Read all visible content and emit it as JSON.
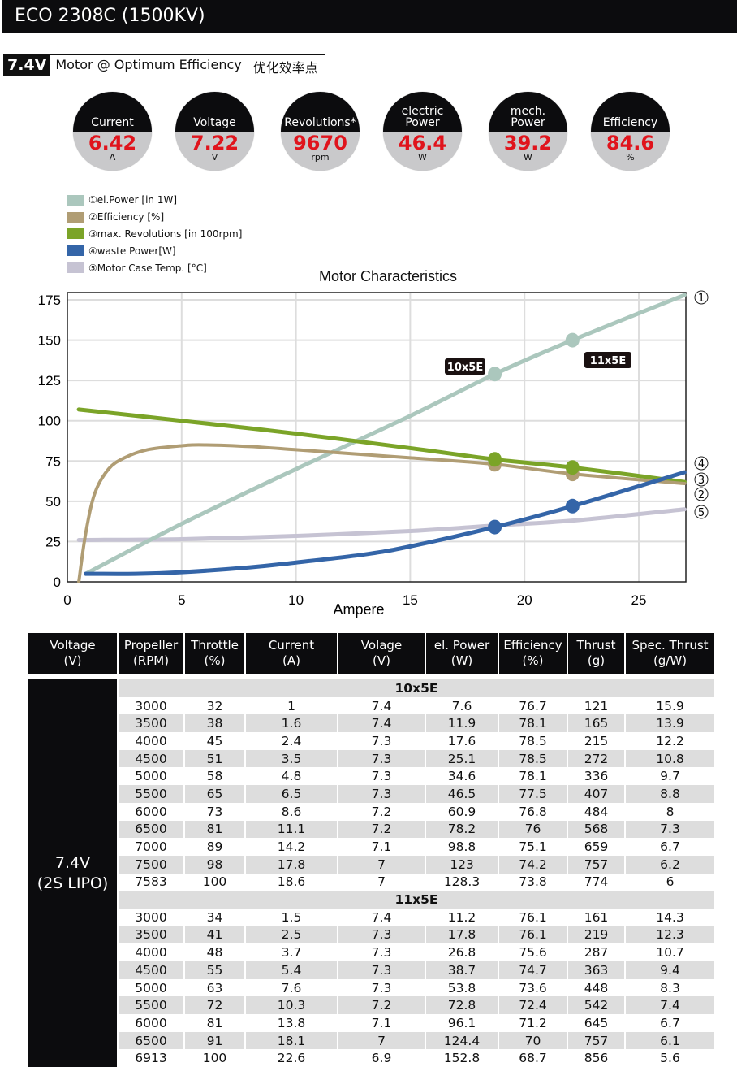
{
  "title": "ECO 2308C (1500KV)",
  "subtitle": {
    "voltage": "7.4V",
    "text": "Motor @ Optimum Efficiency",
    "cn": "优化效率点"
  },
  "gauges": [
    {
      "label": "Current",
      "value": "6.42",
      "unit": "A"
    },
    {
      "label": "Voltage",
      "value": "7.22",
      "unit": "V"
    },
    {
      "label": "Revolutions*",
      "value": "9670",
      "unit": "rpm"
    },
    {
      "label": "electric Power",
      "value": "46.4",
      "unit": "W"
    },
    {
      "label": "mech. Power",
      "value": "39.2",
      "unit": "W"
    },
    {
      "label": "Efficiency",
      "value": "84.6",
      "unit": "%"
    }
  ],
  "colors": {
    "power": "#abc7bd",
    "efficiency": "#b09d74",
    "revolutions": "#7ba428",
    "waste": "#3465a8",
    "temp": "#c6c3d3",
    "value_red": "#e0141c"
  },
  "chart_data": {
    "type": "line",
    "title": "Motor Characteristics",
    "xlabel": "Ampere",
    "ylabel": "",
    "xlim": [
      0,
      27
    ],
    "ylim": [
      0,
      178
    ],
    "xticks": [
      0,
      5,
      10,
      15,
      20,
      25
    ],
    "yticks": [
      0,
      25,
      50,
      75,
      100,
      125,
      150,
      175
    ],
    "grid": true,
    "legend_placement": "top-left",
    "series": [
      {
        "name": "①el.Power [in 1W]",
        "marker": "①",
        "color": "#abc7bd",
        "x": [
          0.8,
          5,
          10,
          15,
          18.7,
          22.1,
          27
        ],
        "y": [
          5,
          36,
          70,
          103,
          129,
          150,
          178
        ]
      },
      {
        "name": "②Efficiency [%]",
        "marker": "②",
        "color": "#b09d74",
        "x": [
          0.5,
          0.8,
          1.2,
          1.8,
          2.5,
          3.5,
          5,
          6,
          8,
          10,
          12,
          15,
          18.7,
          22.1,
          27
        ],
        "y": [
          0,
          30,
          55,
          70,
          77,
          82,
          84.5,
          85,
          84,
          82,
          80,
          77,
          73,
          67,
          61
        ]
      },
      {
        "name": "③max. Revolutions [in 100rpm]",
        "marker": "③",
        "color": "#7ba428",
        "x": [
          0.5,
          5,
          10,
          15,
          18.7,
          22.1,
          27
        ],
        "y": [
          107,
          100,
          92,
          83,
          76,
          71,
          62
        ]
      },
      {
        "name": "④waste Power[W]",
        "marker": "④",
        "color": "#3465a8",
        "x": [
          0.8,
          3,
          5,
          8,
          10,
          13,
          15,
          18.7,
          22.1,
          27
        ],
        "y": [
          5,
          5,
          6,
          9,
          12,
          17,
          22,
          34,
          47,
          68
        ]
      },
      {
        "name": "⑤Motor Case Temp. [°C]",
        "marker": "⑤",
        "color": "#c6c3d3",
        "x": [
          0.5,
          5,
          10,
          15,
          18.7,
          22.1,
          27
        ],
        "y": [
          26,
          26.5,
          28.5,
          31.5,
          35,
          38,
          45
        ]
      }
    ],
    "annotations": [
      {
        "label": "10x5E",
        "x": 18.7
      },
      {
        "label": "11x5E",
        "x": 22.1
      }
    ],
    "points": [
      {
        "x": 18.7,
        "series": [
          129,
          73,
          76,
          34
        ]
      },
      {
        "x": 22.1,
        "series": [
          150,
          67,
          71,
          47
        ]
      }
    ]
  },
  "table": {
    "headers": [
      [
        "Voltage",
        "(V)"
      ],
      [
        "Propeller",
        "(RPM)"
      ],
      [
        "Throttle",
        "(%)"
      ],
      [
        "Current",
        "(A)"
      ],
      [
        "Volage",
        "(V)"
      ],
      [
        "el. Power",
        "(W)"
      ],
      [
        "Efficiency",
        "(%)"
      ],
      [
        "Thrust",
        "(g)"
      ],
      [
        "Spec. Thrust",
        "(g/W)"
      ]
    ],
    "voltage": [
      "7.4V",
      "(2S LIPO)"
    ],
    "sections": [
      {
        "prop": "10x5E",
        "rows": [
          [
            "3000",
            "32",
            "1",
            "7.4",
            "7.6",
            "76.7",
            "121",
            "15.9"
          ],
          [
            "3500",
            "38",
            "1.6",
            "7.4",
            "11.9",
            "78.1",
            "165",
            "13.9"
          ],
          [
            "4000",
            "45",
            "2.4",
            "7.3",
            "17.6",
            "78.5",
            "215",
            "12.2"
          ],
          [
            "4500",
            "51",
            "3.5",
            "7.3",
            "25.1",
            "78.5",
            "272",
            "10.8"
          ],
          [
            "5000",
            "58",
            "4.8",
            "7.3",
            "34.6",
            "78.1",
            "336",
            "9.7"
          ],
          [
            "5500",
            "65",
            "6.5",
            "7.3",
            "46.5",
            "77.5",
            "407",
            "8.8"
          ],
          [
            "6000",
            "73",
            "8.6",
            "7.2",
            "60.9",
            "76.8",
            "484",
            "8"
          ],
          [
            "6500",
            "81",
            "11.1",
            "7.2",
            "78.2",
            "76",
            "568",
            "7.3"
          ],
          [
            "7000",
            "89",
            "14.2",
            "7.1",
            "98.8",
            "75.1",
            "659",
            "6.7"
          ],
          [
            "7500",
            "98",
            "17.8",
            "7",
            "123",
            "74.2",
            "757",
            "6.2"
          ],
          [
            "7583",
            "100",
            "18.6",
            "7",
            "128.3",
            "73.8",
            "774",
            "6"
          ]
        ]
      },
      {
        "prop": "11x5E",
        "rows": [
          [
            "3000",
            "34",
            "1.5",
            "7.4",
            "11.2",
            "76.1",
            "161",
            "14.3"
          ],
          [
            "3500",
            "41",
            "2.5",
            "7.3",
            "17.8",
            "76.1",
            "219",
            "12.3"
          ],
          [
            "4000",
            "48",
            "3.7",
            "7.3",
            "26.8",
            "75.6",
            "287",
            "10.7"
          ],
          [
            "4500",
            "55",
            "5.4",
            "7.3",
            "38.7",
            "74.7",
            "363",
            "9.4"
          ],
          [
            "5000",
            "63",
            "7.6",
            "7.3",
            "53.8",
            "73.6",
            "448",
            "8.3"
          ],
          [
            "5500",
            "72",
            "10.3",
            "7.2",
            "72.8",
            "72.4",
            "542",
            "7.4"
          ],
          [
            "6000",
            "81",
            "13.8",
            "7.1",
            "96.1",
            "71.2",
            "645",
            "6.7"
          ],
          [
            "6500",
            "91",
            "18.1",
            "7",
            "124.4",
            "70",
            "757",
            "6.1"
          ],
          [
            "6913",
            "100",
            "22.6",
            "6.9",
            "152.8",
            "68.7",
            "856",
            "5.6"
          ]
        ]
      }
    ]
  }
}
